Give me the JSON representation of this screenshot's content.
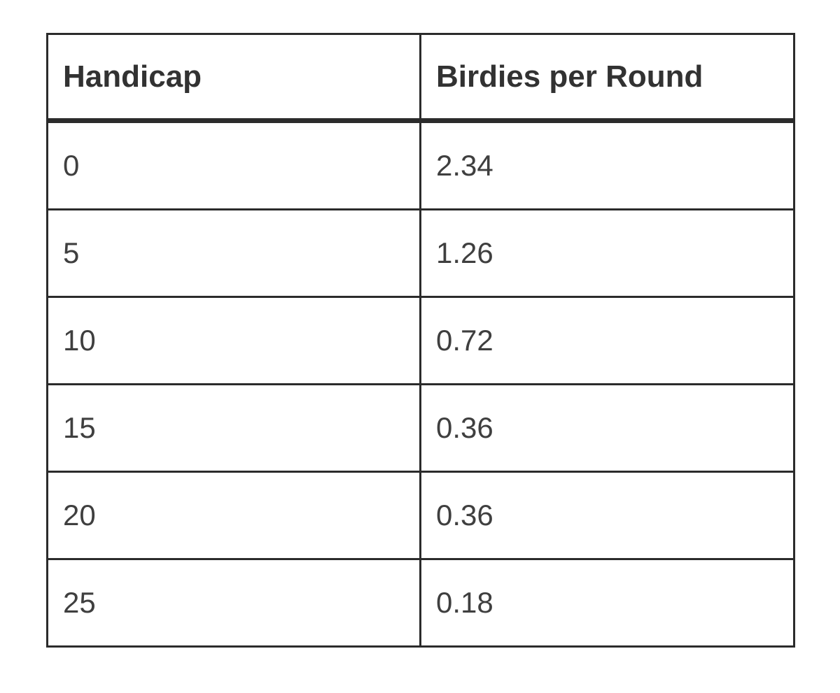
{
  "table": {
    "columns": [
      {
        "label": "Handicap"
      },
      {
        "label": "Birdies per Round"
      }
    ],
    "rows": [
      {
        "handicap": "0",
        "birdies": "2.34"
      },
      {
        "handicap": "5",
        "birdies": "1.26"
      },
      {
        "handicap": "10",
        "birdies": "0.72"
      },
      {
        "handicap": "15",
        "birdies": "0.36"
      },
      {
        "handicap": "20",
        "birdies": "0.36"
      },
      {
        "handicap": "25",
        "birdies": "0.18"
      }
    ]
  },
  "chart_data": {
    "type": "table",
    "columns": [
      "Handicap",
      "Birdies per Round"
    ],
    "categories": [
      0,
      5,
      10,
      15,
      20,
      25
    ],
    "values": [
      2.34,
      1.26,
      0.72,
      0.36,
      0.36,
      0.18
    ],
    "xlabel": "Handicap",
    "ylabel": "Birdies per Round",
    "title": ""
  },
  "colors": {
    "border": "#2b2b2b",
    "header_text": "#323232",
    "cell_text": "#3f3f3f",
    "background": "#ffffff"
  }
}
